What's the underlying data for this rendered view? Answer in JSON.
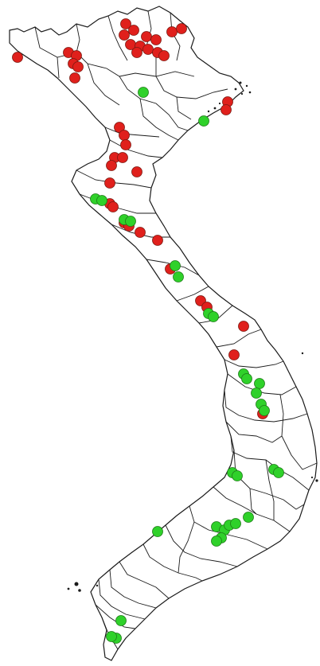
{
  "map": {
    "colors": {
      "background": "#ffffff",
      "boundary": "#1a1a1a",
      "red_marker": "#e0201c",
      "green_marker": "#2fd12a",
      "marker_outline": "#7a1a12"
    },
    "marker_categories": [
      "red",
      "green"
    ]
  }
}
